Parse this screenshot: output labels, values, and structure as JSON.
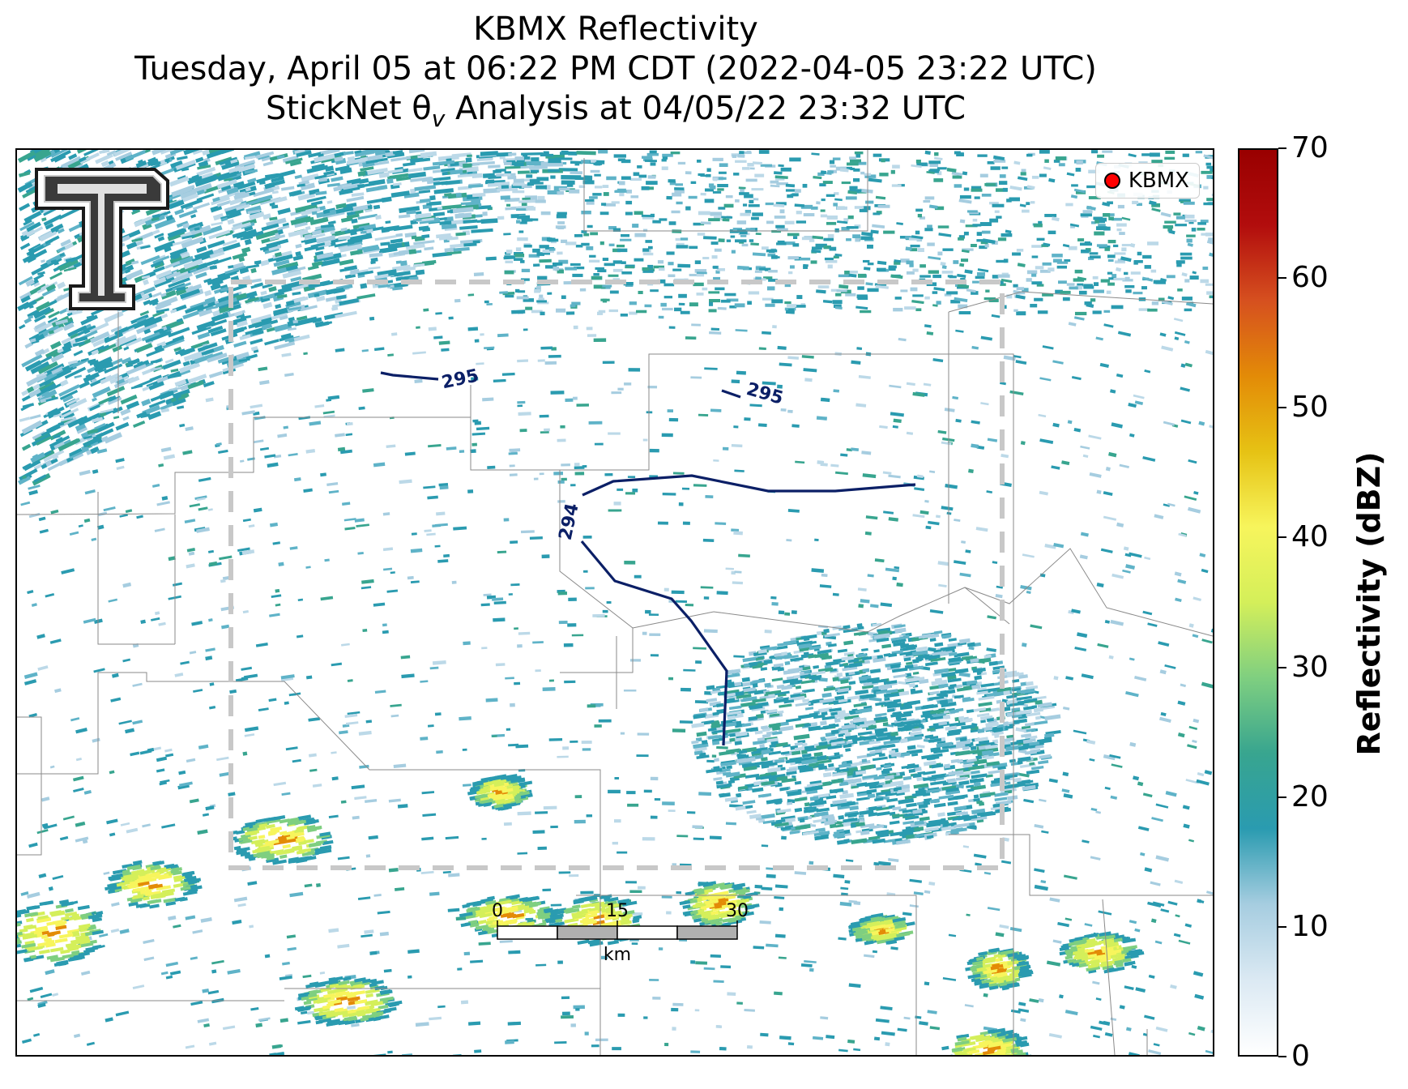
{
  "title": {
    "line1": "KBMX Reflectivity",
    "line2": "Tuesday, April 05 at 06:22 PM CDT (2022-04-05 23:22 UTC)",
    "line3": "StickNet θ",
    "line3_sub": "v",
    "line3_rest": " Analysis at 04/05/22 23:32 UTC"
  },
  "legend": {
    "label": "KBMX",
    "marker_color": "#ff0000"
  },
  "logo": {
    "name": "texas-tech-double-t-logo"
  },
  "contours": {
    "labels": [
      "295",
      "295",
      "294"
    ],
    "color": "#0b1f66"
  },
  "scalebar": {
    "ticks": [
      "0",
      "15",
      "30"
    ],
    "unit": "km"
  },
  "colorbar": {
    "title": "Reflectivity (dBZ)",
    "ticks": [
      "0",
      "10",
      "20",
      "30",
      "40",
      "50",
      "60",
      "70"
    ],
    "range": [
      0,
      70
    ],
    "colors": [
      "#ffffff",
      "#dbe9f3",
      "#a6cde0",
      "#2a9bb0",
      "#38a58f",
      "#7fcf80",
      "#d4ef5a",
      "#f7f55c",
      "#e6c214",
      "#e38b07",
      "#d6501f",
      "#b20d0d",
      "#990000"
    ]
  },
  "analysis_box": {
    "style": "dashed",
    "color": "#c8c8c8"
  }
}
